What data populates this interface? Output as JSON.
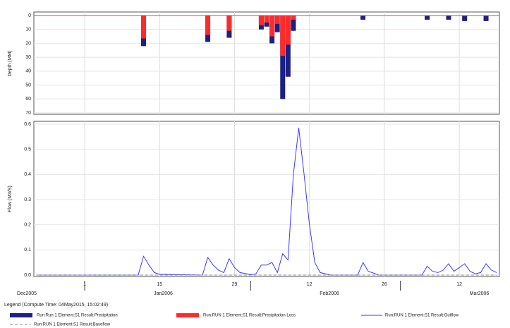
{
  "chart_data": [
    {
      "type": "bar",
      "ylabel": "Depth (MM)",
      "inverted": true,
      "ylim": [
        0,
        70
      ],
      "yticks": [
        0,
        10,
        20,
        30,
        40,
        50,
        60,
        70
      ],
      "xlim": [
        -9.5,
        77.5
      ],
      "xticks": [
        0,
        14,
        28,
        42,
        56,
        70
      ],
      "grid": true,
      "series": [
        {
          "name": "Run:Run 1 Element:S1 Result:Precipitation",
          "color": "#1b1f86",
          "x": [
            11,
            23,
            27,
            33,
            34,
            35,
            36,
            37,
            38,
            39,
            52,
            64,
            68,
            71,
            75
          ],
          "values": [
            22,
            19,
            16,
            10,
            8,
            20,
            12,
            60,
            44,
            11,
            3,
            3,
            3,
            4,
            4
          ]
        },
        {
          "name": "Run:RUN 1 Element:S1 Result:Precipitation Loss",
          "color": "#ff2b2b",
          "x": [
            11,
            23,
            27,
            33,
            34,
            35,
            36,
            37,
            38,
            39,
            52,
            64,
            68,
            71,
            75
          ],
          "values": [
            16.5,
            14,
            11,
            7,
            5,
            15,
            6,
            29,
            21,
            3,
            0.5,
            0.5,
            0.5,
            0.5,
            0.5
          ]
        }
      ]
    },
    {
      "type": "line",
      "ylabel": "Flow (M3/S)",
      "ylim": [
        0,
        0.6
      ],
      "yticks": [
        {
          "value": 0,
          "label": "0.0"
        },
        0.1,
        0.2,
        0.3,
        0.4,
        0.5,
        0.6
      ],
      "xlim": [
        -9.5,
        77.5
      ],
      "xticks": [
        {
          "value": 0,
          "label": "1"
        },
        {
          "value": 14,
          "label": "15"
        },
        {
          "value": 28,
          "label": "29"
        },
        {
          "value": 42,
          "label": "12"
        },
        {
          "value": 56,
          "label": "26"
        },
        {
          "value": 70,
          "label": "12"
        }
      ],
      "months": [
        {
          "value": -9.5,
          "label": "Dec2005"
        },
        {
          "value": 0,
          "label": "Jan2006"
        },
        {
          "value": 31,
          "label": "Feb2006"
        },
        {
          "value": 59,
          "label": "Mar2006"
        }
      ],
      "grid": true,
      "legend_title": "Legend (Compute Time: 04May2015, 15:02:49)",
      "series": [
        {
          "name": "Run:RUN 1 Element:S1 Result:Outflow",
          "color": "#3a3aff",
          "x": [
            -9,
            10,
            11,
            12,
            13,
            14,
            22,
            23,
            24,
            25,
            26,
            27,
            28,
            29,
            31,
            32,
            33,
            34,
            35,
            36,
            37,
            38,
            39,
            40,
            41,
            42,
            43,
            44,
            46,
            51,
            52,
            53,
            55,
            63,
            64,
            65,
            66,
            67,
            68,
            69,
            70,
            71,
            72,
            73,
            74,
            75,
            76,
            77
          ],
          "values": [
            0,
            0,
            0.075,
            0.04,
            0.01,
            0.003,
            0,
            0.07,
            0.04,
            0.02,
            0.01,
            0.065,
            0.03,
            0.01,
            0.002,
            0.005,
            0.04,
            0.04,
            0.05,
            0.01,
            0.085,
            0.06,
            0.4,
            0.585,
            0.4,
            0.2,
            0.05,
            0.01,
            0,
            0,
            0.05,
            0.015,
            0,
            0,
            0.035,
            0.015,
            0.01,
            0.02,
            0.045,
            0.015,
            0.03,
            0.045,
            0.015,
            0.005,
            0.01,
            0.045,
            0.02,
            0.01
          ]
        },
        {
          "name": "Run:RUN 1 Element:S1 Result:Baseflow",
          "color": "#888888",
          "dashed": true,
          "x": [
            -9,
            77
          ],
          "values": [
            0,
            0
          ]
        }
      ]
    }
  ]
}
